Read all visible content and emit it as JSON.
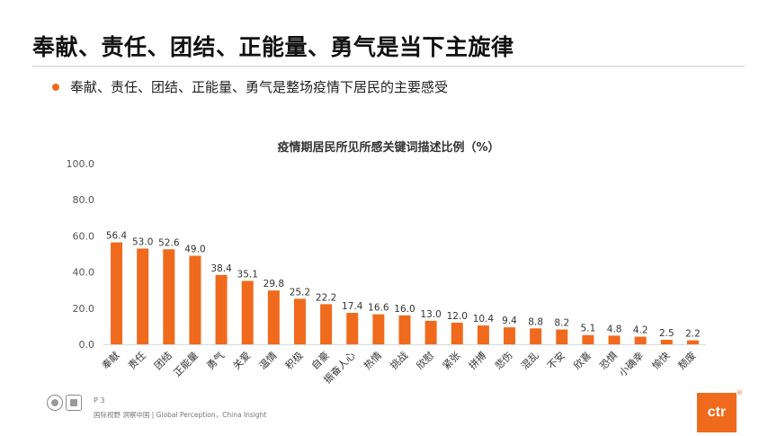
{
  "header": {
    "title": "奉献、责任、团结、正能量、勇气是当下主旋律"
  },
  "bullet": {
    "text": "奉献、责任、团结、正能量、勇气是整场疫情下居民的主要感受"
  },
  "chart_data": {
    "type": "bar",
    "title": "疫情期居民所见所感关键词描述比例（%）",
    "xlabel": "",
    "ylabel": "",
    "ylim": [
      0,
      100
    ],
    "yticks": [
      "0.0",
      "20.0",
      "40.0",
      "60.0",
      "80.0",
      "100.0"
    ],
    "grid": false,
    "bar_color": "#f06a1d",
    "categories": [
      "奉献",
      "责任",
      "团结",
      "正能量",
      "勇气",
      "关爱",
      "温情",
      "积极",
      "自豪",
      "振奋人心",
      "热情",
      "挑战",
      "欣慰",
      "紧张",
      "拼搏",
      "悲伤",
      "混乱",
      "不安",
      "欣喜",
      "恐惧",
      "小确幸",
      "愉快",
      "颓废"
    ],
    "values": [
      56.4,
      53.0,
      52.6,
      49.0,
      38.4,
      35.1,
      29.8,
      25.2,
      22.2,
      17.4,
      16.6,
      16.0,
      13.0,
      12.0,
      10.4,
      9.4,
      8.8,
      8.2,
      5.1,
      4.8,
      4.2,
      2.5,
      2.2
    ],
    "labels": [
      "56.4",
      "53.0",
      "52.6",
      "49.0",
      "38.4",
      "35.1",
      "29.8",
      "25.2",
      "22.2",
      "17.4",
      "16.6",
      "16.0",
      "13.0",
      "12.0",
      "10.4",
      "9.4",
      "8.8",
      "8.2",
      "5.1",
      "4.8",
      "4.2",
      "2.5",
      "2.2"
    ]
  },
  "footer": {
    "page": "P 3",
    "tagline": "国际视野 洞察中国 | Global Perception，China Insight",
    "logo_text": "ctr",
    "reg_mark": "®",
    "logo_color": "#f06a1d"
  }
}
